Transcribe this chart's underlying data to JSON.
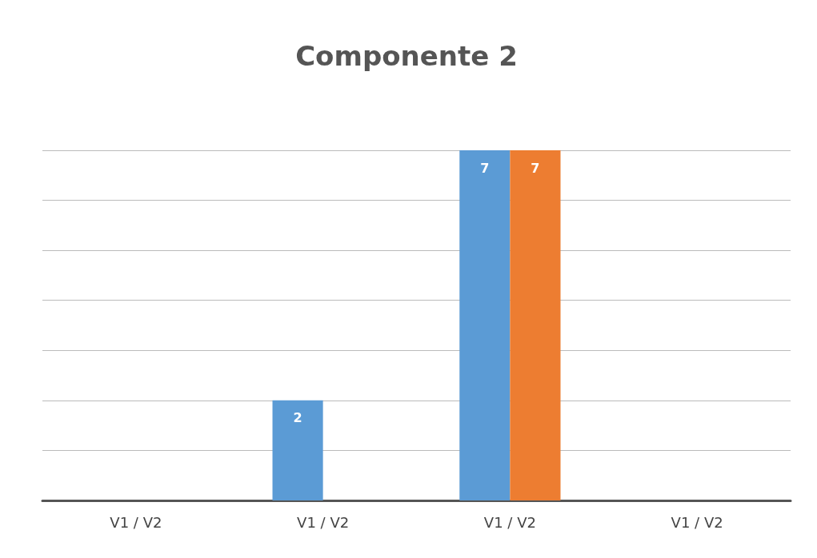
{
  "chart_data": {
    "type": "bar",
    "title": "Componente 2",
    "categories": [
      "V1 / V2",
      "V1 / V2",
      "V1 / V2",
      "V1 / V2"
    ],
    "series": [
      {
        "color": "#5b9bd5",
        "values": [
          null,
          2,
          7,
          null
        ]
      },
      {
        "color": "#ed7d31",
        "values": [
          null,
          null,
          7,
          null
        ]
      }
    ],
    "ylim": [
      0,
      7
    ],
    "yticks": [
      {
        "value": 0,
        "label": null
      },
      {
        "value": 1,
        "label": null
      },
      {
        "value": 2,
        "label": null
      },
      {
        "value": 3,
        "label": null
      },
      {
        "value": 4,
        "label": null
      },
      {
        "value": 5,
        "label": null
      },
      {
        "value": 6,
        "label": null
      },
      {
        "value": 7,
        "label": null
      }
    ],
    "grid": "y",
    "data_labels": true
  }
}
